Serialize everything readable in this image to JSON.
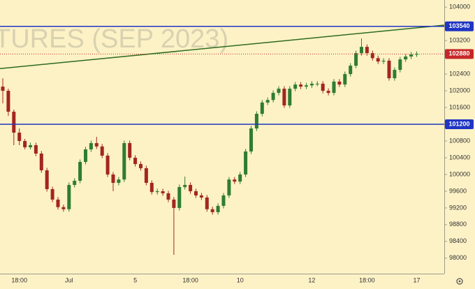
{
  "chart_data": {
    "type": "candlestick",
    "watermark": "TURES (SEP 2023)",
    "categories": [
      null,
      null,
      null,
      "18:00",
      null,
      null,
      null,
      null,
      null,
      null,
      null,
      null,
      "Jul",
      null,
      null,
      null,
      null,
      null,
      null,
      null,
      null,
      null,
      null,
      null,
      "5",
      null,
      null,
      null,
      null,
      null,
      null,
      null,
      null,
      null,
      "18:00",
      null,
      null,
      null,
      null,
      null,
      null,
      null,
      null,
      "10",
      null,
      null,
      null,
      null,
      null,
      null,
      null,
      null,
      null,
      null,
      null,
      null,
      "12",
      null,
      null,
      null,
      null,
      null,
      null,
      null,
      null,
      null,
      "18:00",
      null,
      null,
      null,
      null,
      null,
      null,
      null,
      null,
      "17"
    ],
    "open": [
      102100,
      102000,
      101500,
      101000,
      100800,
      100650,
      100700,
      100500,
      100100,
      99650,
      99400,
      99220,
      99170,
      99750,
      99850,
      100300,
      100600,
      100750,
      100670,
      100450,
      100000,
      99800,
      99880,
      100750,
      100400,
      100250,
      100150,
      99800,
      99580,
      99600,
      99550,
      99400,
      99200,
      99700,
      99750,
      99600,
      99500,
      99450,
      99170,
      99100,
      99250,
      99500,
      99880,
      99830,
      100000,
      100550,
      101100,
      101450,
      101720,
      101780,
      101950,
      102050,
      101650,
      102050,
      102150,
      102100,
      102130,
      102170,
      102170,
      102000,
      101950,
      102220,
      102150,
      102400,
      102600,
      102900,
      103050,
      102900,
      102780,
      102700,
      102720,
      102300,
      102500,
      102750,
      102820,
      102870
    ],
    "high": [
      102300,
      102050,
      101550,
      101100,
      100850,
      100760,
      100760,
      100560,
      100160,
      99710,
      99460,
      99280,
      99810,
      99910,
      100360,
      100660,
      100810,
      100900,
      100730,
      100510,
      100060,
      99940,
      100810,
      100810,
      100460,
      100310,
      100210,
      99860,
      99660,
      99660,
      99610,
      99460,
      99760,
      99950,
      99810,
      99660,
      99560,
      99510,
      99230,
      99310,
      99560,
      99940,
      99940,
      100060,
      100610,
      101160,
      101510,
      101780,
      101840,
      102010,
      102110,
      102110,
      102110,
      102210,
      102210,
      102190,
      102230,
      102230,
      102230,
      102060,
      102280,
      102280,
      102460,
      102660,
      102960,
      103250,
      103110,
      102960,
      102840,
      102780,
      102780,
      102560,
      102810,
      102880,
      102930,
      102940
    ],
    "low": [
      101700,
      101400,
      100700,
      100700,
      100600,
      100600,
      100440,
      100040,
      99590,
      99340,
      99160,
      99110,
      99110,
      99690,
      99790,
      100240,
      100540,
      100610,
      100390,
      99940,
      99600,
      99740,
      99820,
      100340,
      100190,
      100090,
      99740,
      99520,
      99520,
      99490,
      99340,
      98080,
      99140,
      99640,
      99540,
      99440,
      99390,
      99110,
      99040,
      99040,
      99190,
      99440,
      99770,
      99770,
      99940,
      100490,
      101040,
      101390,
      101660,
      101720,
      101890,
      101590,
      101590,
      101990,
      102040,
      102040,
      102070,
      102110,
      101940,
      101890,
      101890,
      102090,
      102090,
      102340,
      102540,
      102840,
      102840,
      102720,
      102640,
      102640,
      102240,
      102240,
      102440,
      102690,
      102760,
      102810
    ],
    "close": [
      102000,
      101500,
      101000,
      100800,
      100650,
      100700,
      100500,
      100100,
      99650,
      99400,
      99220,
      99170,
      99750,
      99850,
      100300,
      100600,
      100750,
      100670,
      100450,
      100000,
      99800,
      99880,
      100750,
      100400,
      100250,
      100150,
      99800,
      99580,
      99600,
      99550,
      99400,
      99200,
      99700,
      99750,
      99600,
      99500,
      99450,
      99170,
      99100,
      99250,
      99500,
      99880,
      99830,
      100000,
      100550,
      101100,
      101450,
      101720,
      101780,
      101950,
      102050,
      101650,
      102050,
      102150,
      102100,
      102130,
      102170,
      102170,
      102000,
      101950,
      102220,
      102150,
      102400,
      102600,
      102900,
      103050,
      102900,
      102780,
      102700,
      102720,
      102300,
      102500,
      102750,
      102820,
      102870,
      102880
    ],
    "up_color": "#2f7d32",
    "down_color": "#a3261f",
    "ylim": [
      97630,
      104170
    ],
    "yticks": [
      98000,
      98400,
      98800,
      99200,
      99600,
      100000,
      100400,
      100800,
      101600,
      102000,
      102400,
      103200,
      104000
    ],
    "price_lines": [
      {
        "value": 103540,
        "color": "#1f35c4"
      },
      {
        "value": 101200,
        "color": "#1f35c4"
      }
    ],
    "last_price": {
      "value": 102880,
      "color": "#c62828"
    },
    "trendline": {
      "x": [
        -0.5,
        80
      ],
      "y": [
        102530,
        103570
      ],
      "color": "#2e6b1f"
    }
  }
}
